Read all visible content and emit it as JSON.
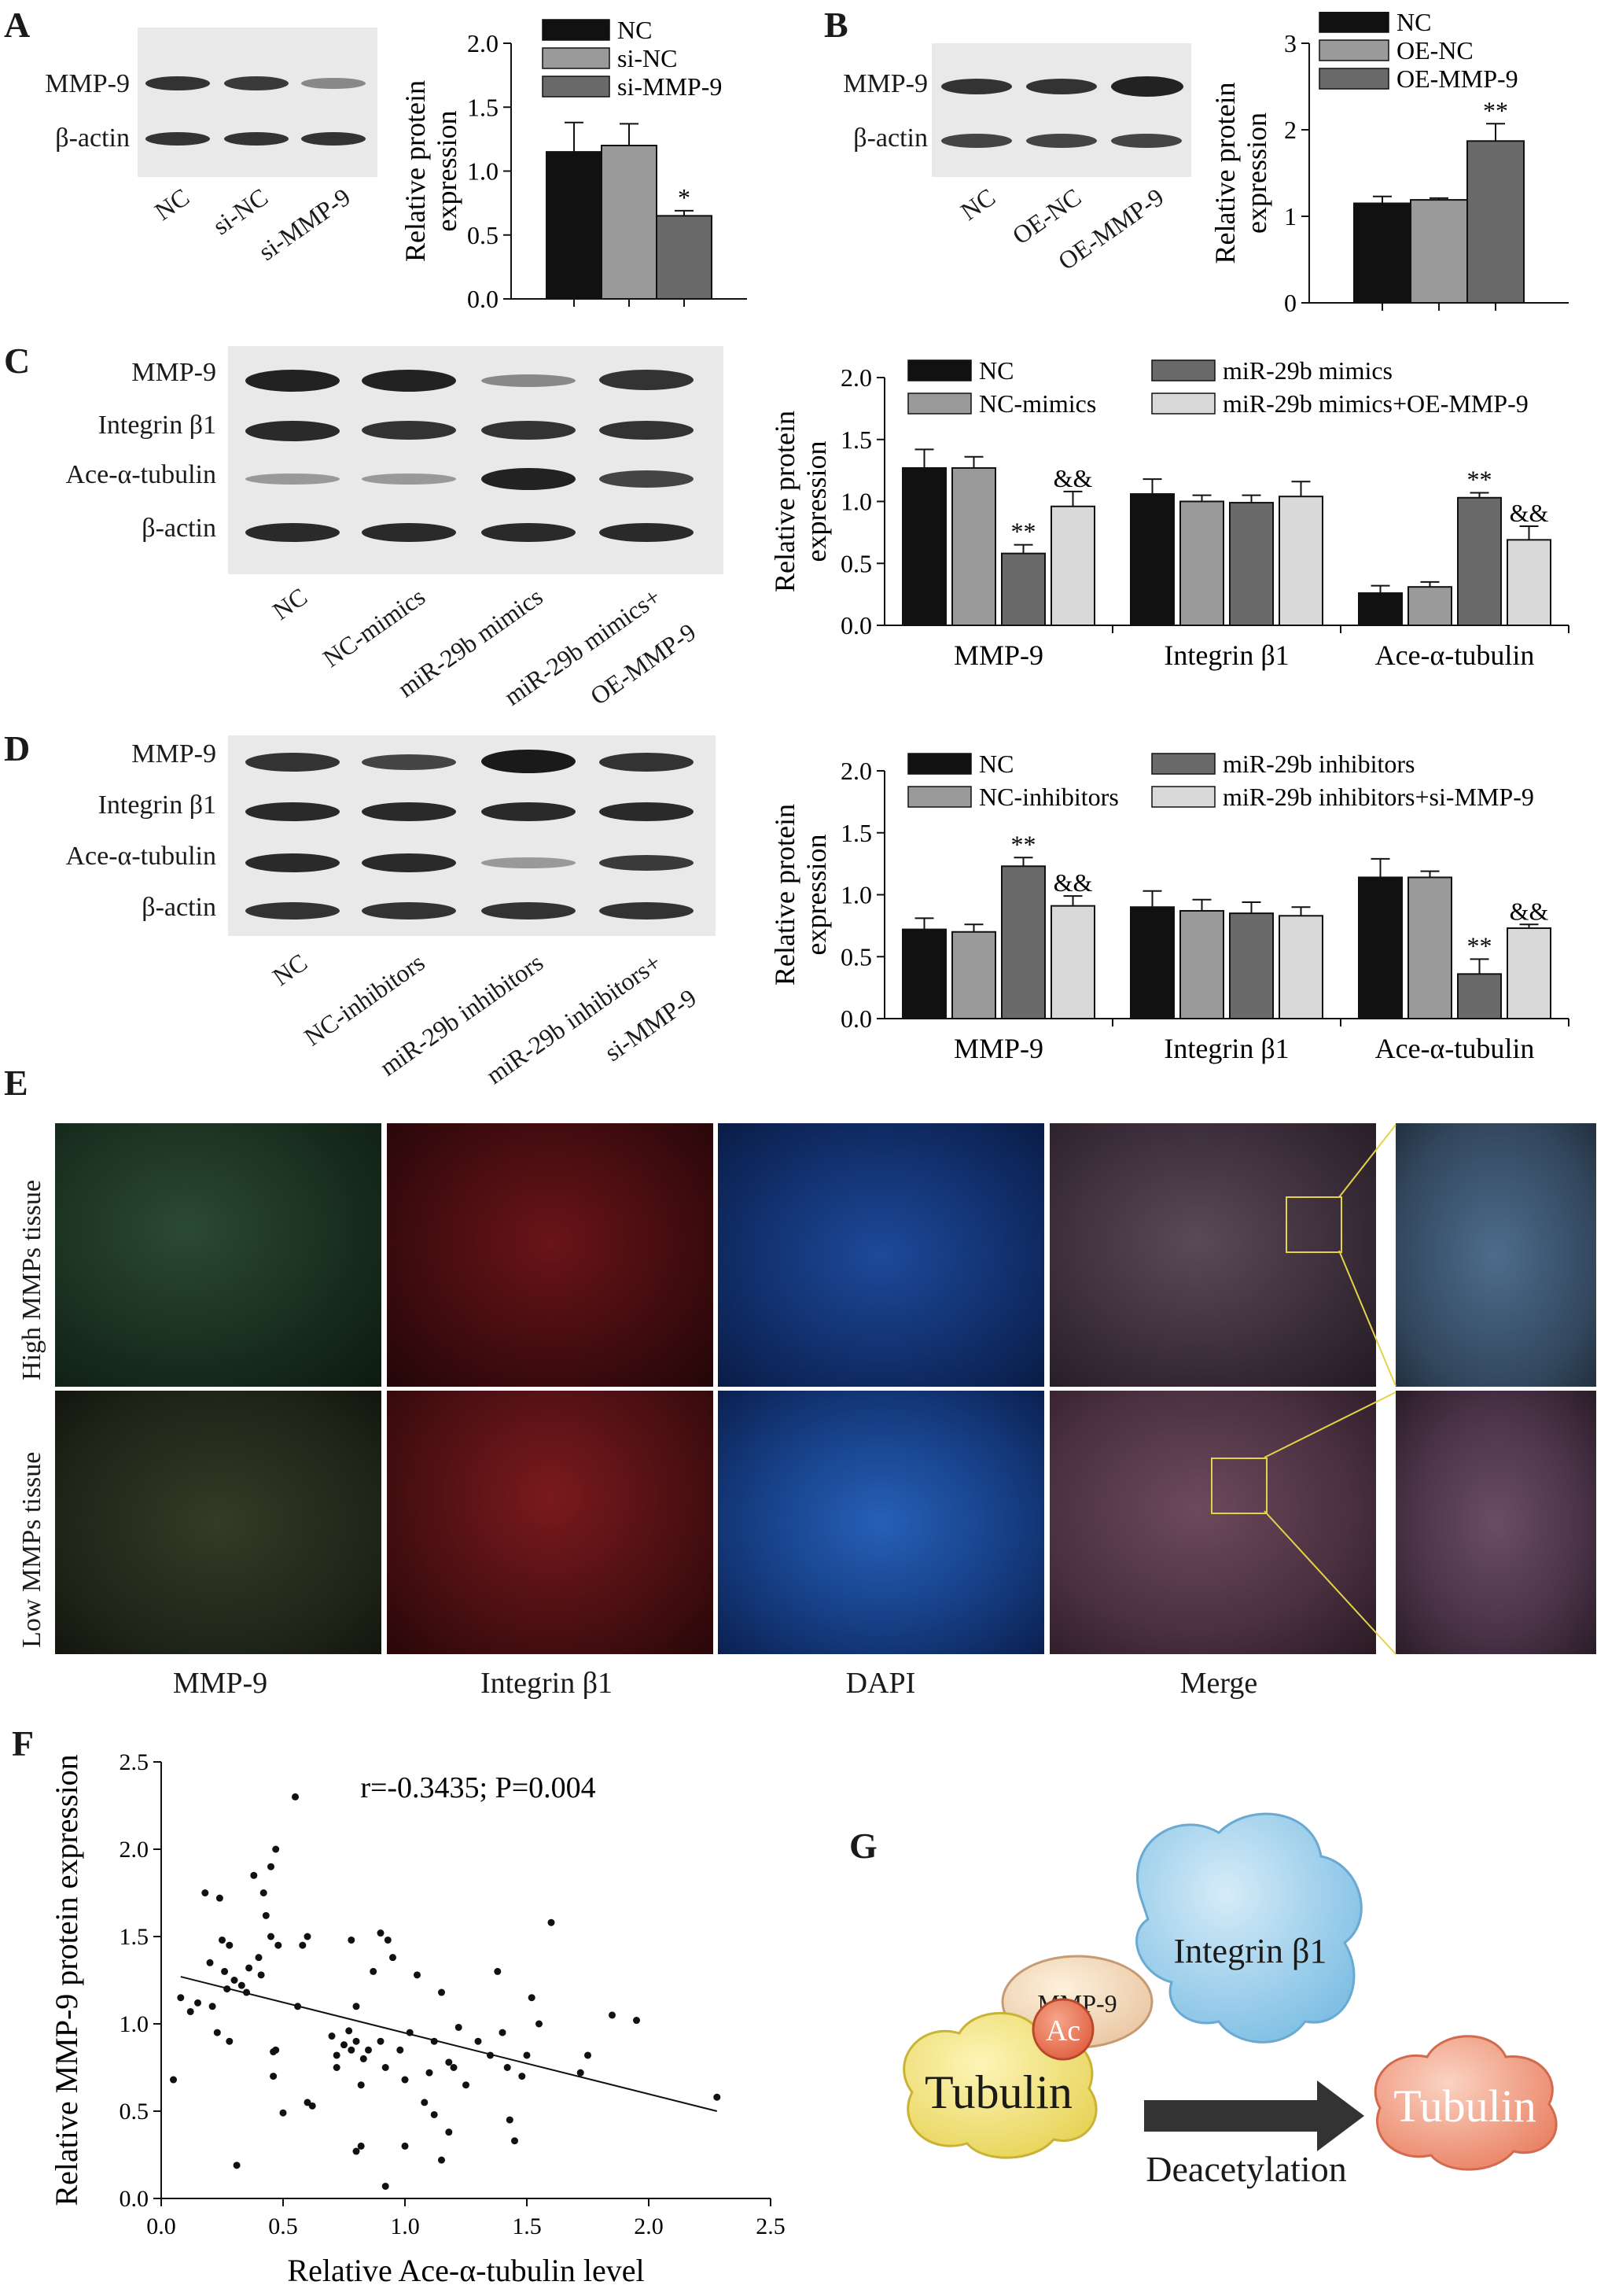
{
  "panels": {
    "A": {
      "letter": "A",
      "blot_rows": [
        "MMP-9",
        "β-actin"
      ],
      "lanes": [
        "NC",
        "si-NC",
        "si-MMP-9"
      ],
      "chart_data": {
        "type": "bar",
        "categories": [
          "NC",
          "si-NC",
          "si-MMP-9"
        ],
        "values": [
          1.15,
          1.2,
          0.65
        ],
        "errors": [
          0.23,
          0.17,
          0.04
        ],
        "ylabel": "Relative protein expression",
        "ylim": [
          0,
          2.0
        ],
        "yticks": [
          "0.0",
          "0.5",
          "1.0",
          "1.5",
          "2.0"
        ],
        "annotations": [
          "",
          "",
          "*"
        ],
        "legend": [
          "NC",
          "si-NC",
          "si-MMP-9"
        ],
        "colors": [
          "#111111",
          "#9a9a9a",
          "#6a6a6a"
        ]
      }
    },
    "B": {
      "letter": "B",
      "blot_rows": [
        "MMP-9",
        "β-actin"
      ],
      "lanes": [
        "NC",
        "OE-NC",
        "OE-MMP-9"
      ],
      "chart_data": {
        "type": "bar",
        "categories": [
          "NC",
          "OE-NC",
          "OE-MMP-9"
        ],
        "values": [
          1.15,
          1.19,
          1.87
        ],
        "errors": [
          0.08,
          0.02,
          0.2
        ],
        "ylabel": "Relative protein expression",
        "ylim": [
          0,
          3
        ],
        "yticks": [
          "0",
          "1",
          "2",
          "3"
        ],
        "annotations": [
          "",
          "",
          "**"
        ],
        "legend": [
          "NC",
          "OE-NC",
          "OE-MMP-9"
        ],
        "colors": [
          "#111111",
          "#9a9a9a",
          "#6a6a6a"
        ]
      }
    },
    "C": {
      "letter": "C",
      "blot_rows": [
        "MMP-9",
        "Integrin β1",
        "Ace-α-tubulin",
        "β-actin"
      ],
      "lanes": [
        "NC",
        "NC-mimics",
        "miR-29b mimics",
        "miR-29b mimics+",
        "OE-MMP-9"
      ],
      "chart_data": {
        "type": "bar",
        "categories": [
          "MMP-9",
          "Integrin β1",
          "Ace-α-tubulin"
        ],
        "series": [
          {
            "name": "NC",
            "values": [
              1.27,
              1.06,
              0.26
            ],
            "errors": [
              0.15,
              0.12,
              0.06
            ]
          },
          {
            "name": "NC-mimics",
            "values": [
              1.27,
              1.0,
              0.31
            ],
            "errors": [
              0.09,
              0.05,
              0.04
            ]
          },
          {
            "name": "miR-29b mimics",
            "values": [
              0.58,
              0.99,
              1.03
            ],
            "errors": [
              0.07,
              0.06,
              0.04
            ]
          },
          {
            "name": "miR-29b mimics+OE-MMP-9",
            "values": [
              0.96,
              1.04,
              0.69
            ],
            "errors": [
              0.12,
              0.12,
              0.11
            ]
          }
        ],
        "annotations": [
          [
            "",
            "",
            "**",
            "&&"
          ],
          [
            "",
            "",
            "",
            ""
          ],
          [
            "",
            "",
            "**",
            "&&"
          ]
        ],
        "ylabel": "Relative protein expression",
        "ylim": [
          0,
          2.0
        ],
        "yticks": [
          "0.0",
          "0.5",
          "1.0",
          "1.5",
          "2.0"
        ],
        "colors": [
          "#111111",
          "#9a9a9a",
          "#6a6a6a",
          "#d9d9d9"
        ]
      }
    },
    "D": {
      "letter": "D",
      "blot_rows": [
        "MMP-9",
        "Integrin β1",
        "Ace-α-tubulin",
        "β-actin"
      ],
      "lanes": [
        "NC",
        "NC-inhibitors",
        "miR-29b inhibitors",
        "miR-29b inhibitors+",
        "si-MMP-9"
      ],
      "chart_data": {
        "type": "bar",
        "categories": [
          "MMP-9",
          "Integrin β1",
          "Ace-α-tubulin"
        ],
        "series": [
          {
            "name": "NC",
            "values": [
              0.72,
              0.9,
              1.14
            ],
            "errors": [
              0.09,
              0.13,
              0.15
            ]
          },
          {
            "name": "NC-inhibitors",
            "values": [
              0.7,
              0.87,
              1.14
            ],
            "errors": [
              0.06,
              0.09,
              0.05
            ]
          },
          {
            "name": "miR-29b inhibitors",
            "values": [
              1.23,
              0.85,
              0.36
            ],
            "errors": [
              0.07,
              0.09,
              0.12
            ]
          },
          {
            "name": "miR-29b inhibitors+si-MMP-9",
            "values": [
              0.91,
              0.83,
              0.73
            ],
            "errors": [
              0.08,
              0.07,
              0.03
            ]
          }
        ],
        "annotations": [
          [
            "",
            "",
            "**",
            "&&"
          ],
          [
            "",
            "",
            "",
            ""
          ],
          [
            "",
            "",
            "**",
            "&&"
          ]
        ],
        "ylabel": "Relative protein expression",
        "ylim": [
          0,
          2.0
        ],
        "yticks": [
          "0.0",
          "0.5",
          "1.0",
          "1.5",
          "2.0"
        ],
        "colors": [
          "#111111",
          "#9a9a9a",
          "#6a6a6a",
          "#d9d9d9"
        ]
      }
    },
    "E": {
      "letter": "E",
      "rows": [
        "High MMPs tissue",
        "Low MMPs tissue"
      ],
      "columns": [
        "MMP-9",
        "Integrin β1",
        "DAPI",
        "Merge"
      ]
    },
    "F": {
      "letter": "F",
      "chart_data": {
        "type": "scatter",
        "annotation": "r=-0.3435; P=0.004",
        "xlabel": "Relative Ace-α-tubulin level",
        "ylabel": "Relative MMP-9 protein expression",
        "xlim": [
          0,
          2.5
        ],
        "ylim": [
          0,
          2.5
        ],
        "xticks": [
          "0.0",
          "0.5",
          "1.0",
          "1.5",
          "2.0",
          "2.5"
        ],
        "yticks": [
          "0.0",
          "0.5",
          "1.0",
          "1.5",
          "2.0",
          "2.5"
        ],
        "fit_line": [
          [
            0.08,
            1.27
          ],
          [
            2.28,
            0.5
          ]
        ],
        "points": [
          [
            0.05,
            0.68
          ],
          [
            0.08,
            1.15
          ],
          [
            0.12,
            1.07
          ],
          [
            0.15,
            1.12
          ],
          [
            0.18,
            1.75
          ],
          [
            0.2,
            1.35
          ],
          [
            0.21,
            1.1
          ],
          [
            0.23,
            0.95
          ],
          [
            0.24,
            1.72
          ],
          [
            0.25,
            1.48
          ],
          [
            0.26,
            1.3
          ],
          [
            0.27,
            1.2
          ],
          [
            0.28,
            1.45
          ],
          [
            0.28,
            0.9
          ],
          [
            0.3,
            1.25
          ],
          [
            0.31,
            0.19
          ],
          [
            0.33,
            1.22
          ],
          [
            0.35,
            1.18
          ],
          [
            0.36,
            1.32
          ],
          [
            0.38,
            1.85
          ],
          [
            0.4,
            1.38
          ],
          [
            0.41,
            1.28
          ],
          [
            0.42,
            1.75
          ],
          [
            0.43,
            1.62
          ],
          [
            0.45,
            1.9
          ],
          [
            0.45,
            1.5
          ],
          [
            0.46,
            0.84
          ],
          [
            0.46,
            0.7
          ],
          [
            0.47,
            2.0
          ],
          [
            0.47,
            0.85
          ],
          [
            0.48,
            1.45
          ],
          [
            0.5,
            0.49
          ],
          [
            0.55,
            2.3
          ],
          [
            0.56,
            1.1
          ],
          [
            0.58,
            1.45
          ],
          [
            0.6,
            0.55
          ],
          [
            0.6,
            1.5
          ],
          [
            0.62,
            0.53
          ],
          [
            0.7,
            0.93
          ],
          [
            0.72,
            0.82
          ],
          [
            0.72,
            0.75
          ],
          [
            0.75,
            0.88
          ],
          [
            0.77,
            0.96
          ],
          [
            0.78,
            1.48
          ],
          [
            0.78,
            0.85
          ],
          [
            0.8,
            0.9
          ],
          [
            0.8,
            1.1
          ],
          [
            0.8,
            0.27
          ],
          [
            0.82,
            0.65
          ],
          [
            0.82,
            0.3
          ],
          [
            0.83,
            0.8
          ],
          [
            0.85,
            0.85
          ],
          [
            0.87,
            1.3
          ],
          [
            0.9,
            1.52
          ],
          [
            0.9,
            0.9
          ],
          [
            0.92,
            0.07
          ],
          [
            0.92,
            0.75
          ],
          [
            0.93,
            1.48
          ],
          [
            0.95,
            1.38
          ],
          [
            0.98,
            0.85
          ],
          [
            1.0,
            0.68
          ],
          [
            1.0,
            0.3
          ],
          [
            1.02,
            0.95
          ],
          [
            1.05,
            1.28
          ],
          [
            1.08,
            0.55
          ],
          [
            1.1,
            0.72
          ],
          [
            1.12,
            0.48
          ],
          [
            1.12,
            0.9
          ],
          [
            1.15,
            1.18
          ],
          [
            1.15,
            0.22
          ],
          [
            1.18,
            0.78
          ],
          [
            1.18,
            0.38
          ],
          [
            1.2,
            0.75
          ],
          [
            1.22,
            0.98
          ],
          [
            1.25,
            0.65
          ],
          [
            1.3,
            0.9
          ],
          [
            1.35,
            0.82
          ],
          [
            1.38,
            1.3
          ],
          [
            1.4,
            0.95
          ],
          [
            1.42,
            0.75
          ],
          [
            1.43,
            0.45
          ],
          [
            1.45,
            0.33
          ],
          [
            1.48,
            0.7
          ],
          [
            1.5,
            0.82
          ],
          [
            1.52,
            1.15
          ],
          [
            1.55,
            1.0
          ],
          [
            1.6,
            1.58
          ],
          [
            1.72,
            0.72
          ],
          [
            1.75,
            0.82
          ],
          [
            1.85,
            1.05
          ],
          [
            1.95,
            1.02
          ],
          [
            2.28,
            0.58
          ]
        ]
      }
    },
    "G": {
      "letter": "G",
      "labels": {
        "integrin": "Integrin β1",
        "mmp9": "MMP-9",
        "ac": "Ac",
        "tubulin_left": "Tubulin",
        "tubulin_right": "Tubulin",
        "arrow": "Deacetylation"
      }
    }
  }
}
